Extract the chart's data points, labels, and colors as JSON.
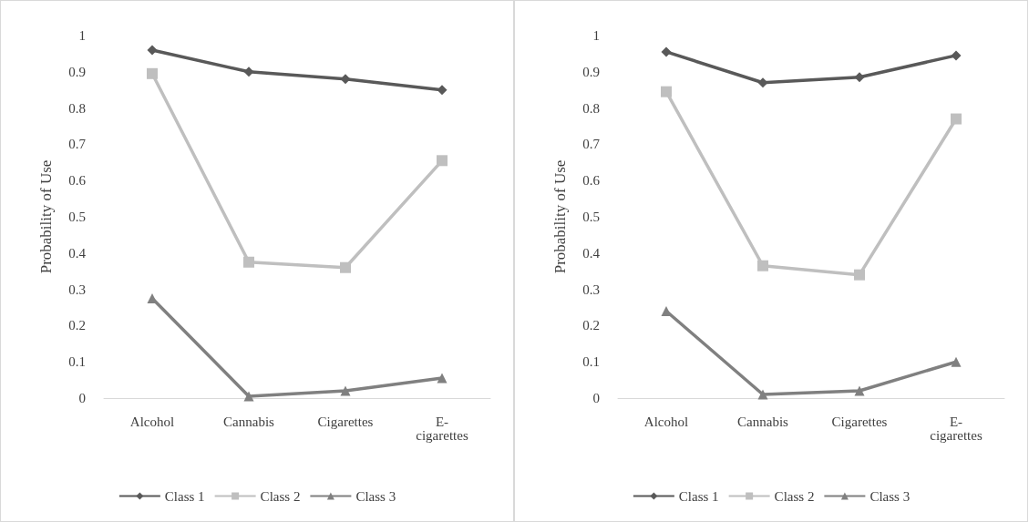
{
  "chart_data": [
    {
      "type": "line",
      "ylabel": "Probability of Use",
      "categories": [
        "Alcohol",
        "Cannabis",
        "Cigarettes",
        "E-cigarettes"
      ],
      "ylim": [
        0,
        1
      ],
      "yticks": [
        0,
        0.1,
        0.2,
        0.3,
        0.4,
        0.5,
        0.6,
        0.7,
        0.8,
        0.9,
        1
      ],
      "grid": false,
      "legend": "bottom",
      "line_style": "solid",
      "series": [
        {
          "name": "Class 1",
          "color": "#595959",
          "marker": "diamond",
          "values": [
            0.96,
            0.9,
            0.88,
            0.85
          ]
        },
        {
          "name": "Class 2",
          "color": "#bfbfbf",
          "marker": "square",
          "values": [
            0.895,
            0.375,
            0.36,
            0.655
          ]
        },
        {
          "name": "Class 3",
          "color": "#808080",
          "marker": "triangle",
          "values": [
            0.275,
            0.005,
            0.02,
            0.055
          ]
        }
      ]
    },
    {
      "type": "line",
      "ylabel": "Probability of Use",
      "categories": [
        "Alcohol",
        "Cannabis",
        "Cigarettes",
        "E-cigarettes"
      ],
      "ylim": [
        0,
        1
      ],
      "yticks": [
        0,
        0.1,
        0.2,
        0.3,
        0.4,
        0.5,
        0.6,
        0.7,
        0.8,
        0.9,
        1
      ],
      "grid": false,
      "legend": "bottom",
      "line_style": "solid",
      "series": [
        {
          "name": "Class 1",
          "color": "#595959",
          "marker": "diamond",
          "values": [
            0.955,
            0.87,
            0.885,
            0.945
          ]
        },
        {
          "name": "Class 2",
          "color": "#bfbfbf",
          "marker": "square",
          "values": [
            0.845,
            0.365,
            0.34,
            0.77
          ]
        },
        {
          "name": "Class 3",
          "color": "#808080",
          "marker": "triangle",
          "values": [
            0.24,
            0.01,
            0.02,
            0.1
          ]
        }
      ]
    }
  ]
}
